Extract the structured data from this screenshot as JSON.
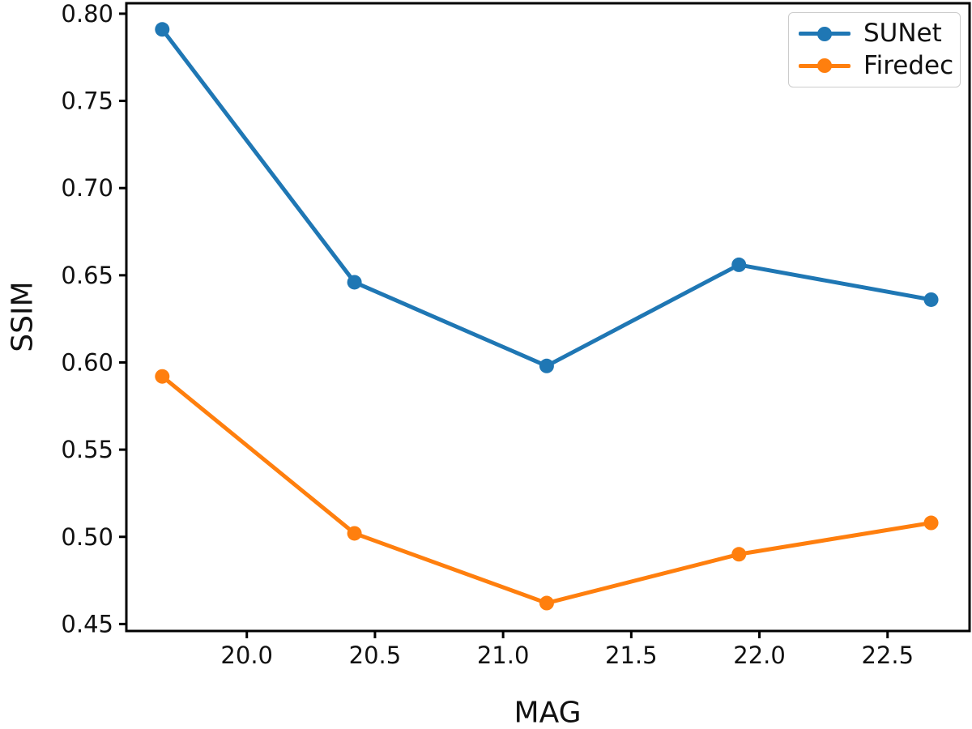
{
  "chart_data": {
    "type": "line",
    "title": "",
    "xlabel": "MAG",
    "ylabel": "SSIM",
    "x": [
      19.67,
      20.42,
      21.17,
      21.92,
      22.67
    ],
    "series": [
      {
        "name": "SUNet",
        "color": "#1f77b4",
        "values": [
          0.791,
          0.646,
          0.598,
          0.656,
          0.636
        ]
      },
      {
        "name": "Firedec",
        "color": "#ff7f0e",
        "values": [
          0.592,
          0.502,
          0.462,
          0.49,
          0.508
        ]
      }
    ],
    "xlim": [
      19.53,
      22.82
    ],
    "ylim": [
      0.446,
      0.806
    ],
    "xticks": [
      20.0,
      20.5,
      21.0,
      21.5,
      22.0,
      22.5
    ],
    "xtick_labels": [
      "20.0",
      "20.5",
      "21.0",
      "21.5",
      "22.0",
      "22.5"
    ],
    "yticks": [
      0.45,
      0.5,
      0.55,
      0.6,
      0.65,
      0.7,
      0.75,
      0.8
    ],
    "ytick_labels": [
      "0.45",
      "0.50",
      "0.55",
      "0.60",
      "0.65",
      "0.70",
      "0.75",
      "0.80"
    ],
    "grid": false,
    "legend_position": "upper right",
    "marker": "circle",
    "line_width": 5,
    "marker_radius": 9,
    "spine_color": "#000000",
    "text_color": "#111111"
  },
  "legend": {
    "items": [
      {
        "label": "SUNet",
        "color": "#1f77b4"
      },
      {
        "label": "Firedec",
        "color": "#ff7f0e"
      }
    ]
  }
}
